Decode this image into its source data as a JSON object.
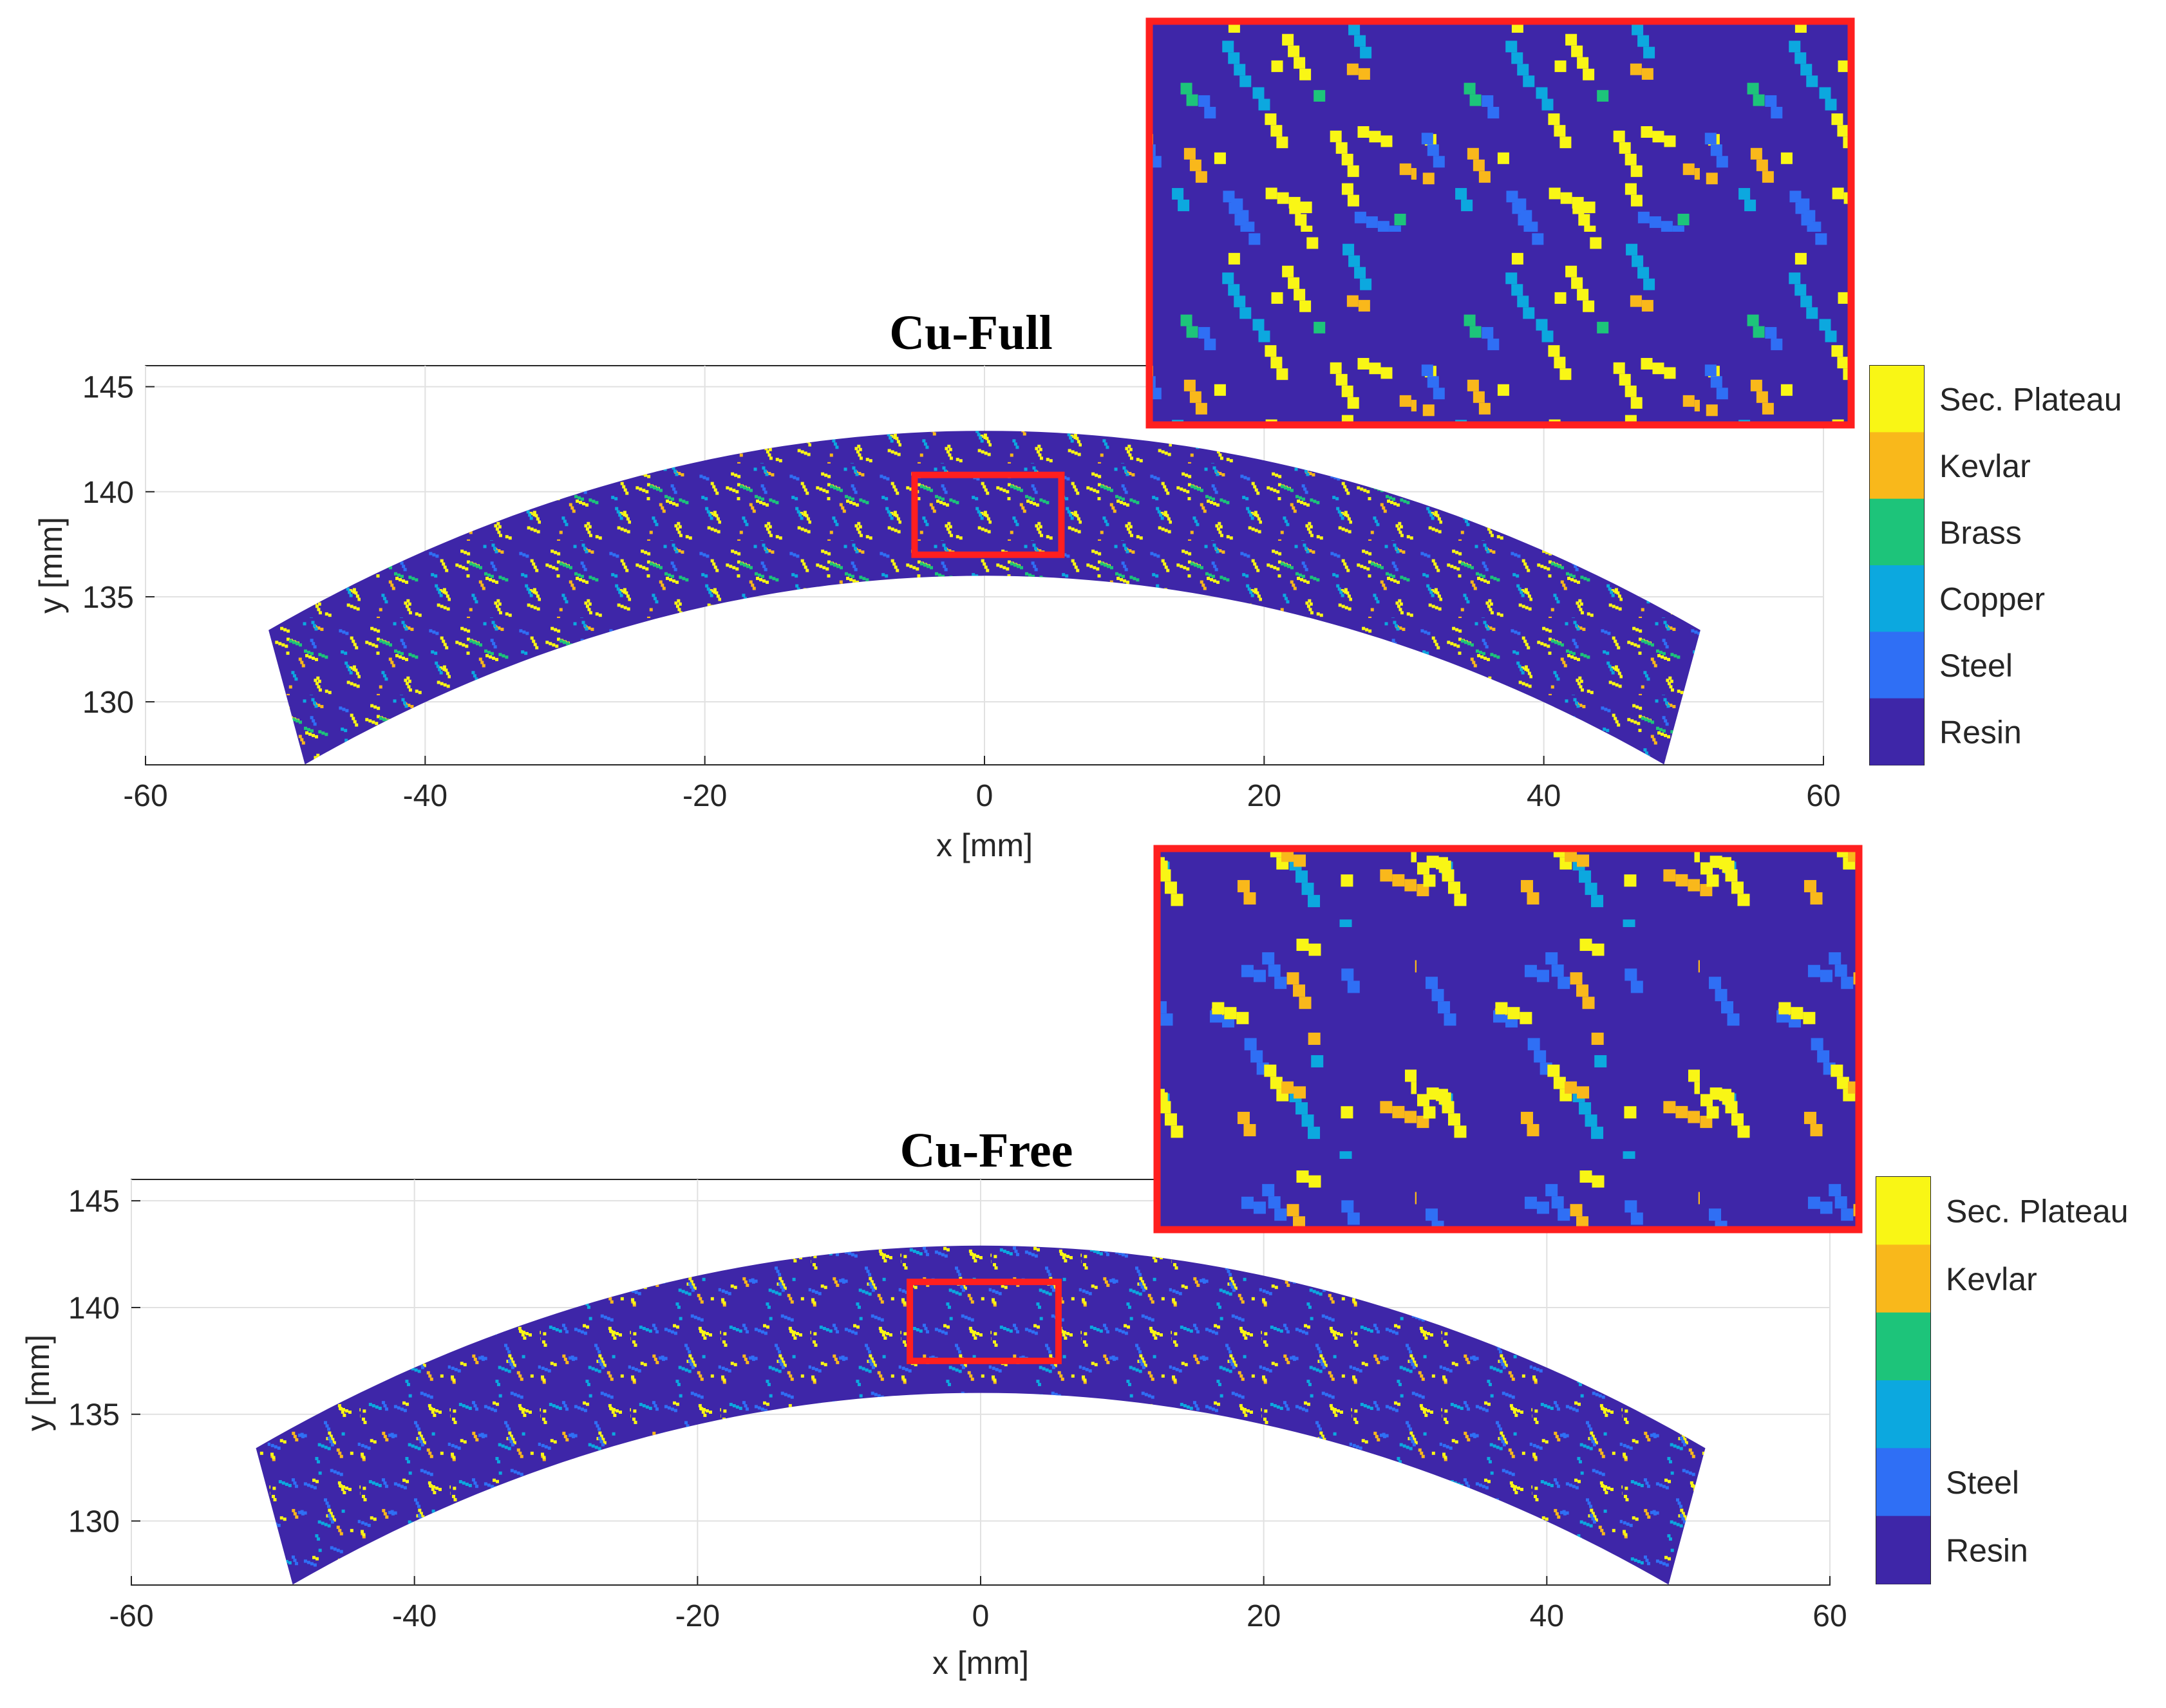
{
  "colors": {
    "Resin": "#3E26A8",
    "Steel": "#2F6FF5",
    "Copper": "#0CA8DF",
    "Brass": "#1DC47A",
    "Kevlar": "#F9B81B",
    "Sec. Plateau": "#F9F615",
    "zoom_box": "#FF1F1F"
  },
  "chart_data": [
    {
      "type": "heatmap",
      "title": "Cu-Full",
      "xlabel": "x [mm]",
      "ylabel": "y [mm]",
      "xlim": [
        -60,
        60
      ],
      "ylim": [
        127,
        146
      ],
      "xticks": [
        -60,
        -40,
        -20,
        0,
        20,
        40,
        60
      ],
      "yticks": [
        130,
        135,
        140,
        145
      ],
      "xtick_labels": [
        "-60",
        "-40",
        "-20",
        "0",
        "20",
        "40",
        "60"
      ],
      "ytick_labels": [
        "130",
        "135",
        "140",
        "145"
      ],
      "grid": true,
      "domain_shape": "annular sector: inner radius ~136 mm, outer radius ~143 mm, x from -51 to 51 mm",
      "zoom_region": {
        "x": [
          -5,
          5.5
        ],
        "y": [
          137,
          140.8
        ]
      },
      "colorbar": [
        "Sec. Plateau",
        "Kevlar",
        "Brass",
        "Copper",
        "Steel",
        "Resin"
      ]
    },
    {
      "type": "heatmap",
      "title": "Cu-Free",
      "xlabel": "x [mm]",
      "ylabel": "y [mm]",
      "xlim": [
        -60,
        60
      ],
      "ylim": [
        127,
        146
      ],
      "xticks": [
        -60,
        -40,
        -20,
        0,
        20,
        40,
        60
      ],
      "yticks": [
        130,
        135,
        140,
        145
      ],
      "xtick_labels": [
        "-60",
        "-40",
        "-20",
        "0",
        "20",
        "40",
        "60"
      ],
      "ytick_labels": [
        "130",
        "135",
        "140",
        "145"
      ],
      "grid": true,
      "domain_shape": "annular sector: inner radius ~136 mm, outer radius ~143 mm, x from -51 to 51 mm",
      "zoom_region": {
        "x": [
          -5,
          5.5
        ],
        "y": [
          137.5,
          141.2
        ]
      },
      "colorbar": [
        "Sec. Plateau",
        "Kevlar",
        "",
        "",
        "Steel",
        "Resin"
      ]
    }
  ]
}
